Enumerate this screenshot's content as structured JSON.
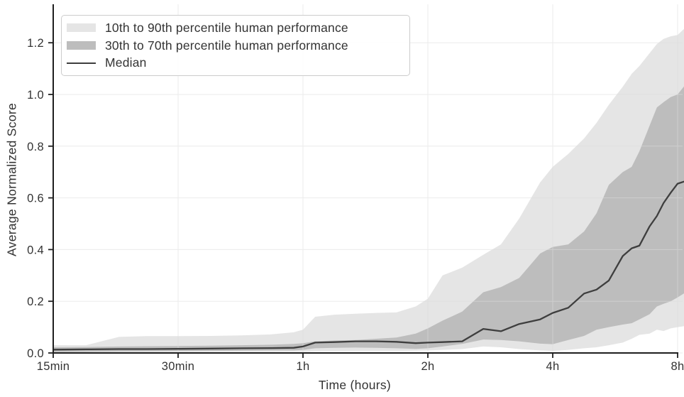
{
  "axes": {
    "x_title": "Time (hours)",
    "y_title": "Average Normalized Score"
  },
  "legend": {
    "items": [
      {
        "label": "10th to 90th percentile human performance",
        "type": "band",
        "color": "#e5e5e5"
      },
      {
        "label": "30th to 70th percentile human performance",
        "type": "band",
        "color": "#bdbdbd"
      },
      {
        "label": "Median",
        "type": "line",
        "color": "#3e3e3e"
      }
    ]
  },
  "colors": {
    "band_outer": "#e5e5e5",
    "band_inner": "#bdbdbd",
    "median_line": "#3e3e3e",
    "grid": "#dcdcdc",
    "spine": "#1f1f1f",
    "text": "#333333"
  },
  "chart_data": {
    "type": "area",
    "title": "",
    "xlabel": "Time (hours)",
    "ylabel": "Average Normalized Score",
    "x_scale": "log2",
    "grid": true,
    "legend_position": "upper left",
    "xlim_hours": [
      0.25,
      8.37
    ],
    "ylim": [
      0,
      1.345
    ],
    "x_ticks": [
      {
        "hours": 0.25,
        "label": "15min"
      },
      {
        "hours": 0.5,
        "label": "30min"
      },
      {
        "hours": 1,
        "label": "1h"
      },
      {
        "hours": 2,
        "label": "2h"
      },
      {
        "hours": 4,
        "label": "4h"
      },
      {
        "hours": 8,
        "label": "8h"
      }
    ],
    "y_ticks": [
      "0.0",
      "0.2",
      "0.4",
      "0.6",
      "0.8",
      "1.0",
      "1.2"
    ],
    "x_hours": [
      0.25,
      0.3,
      0.36,
      0.42,
      0.5,
      0.6,
      0.71,
      0.84,
      0.95,
      1.0,
      1.07,
      1.19,
      1.34,
      1.5,
      1.68,
      1.87,
      2.0,
      2.17,
      2.42,
      2.72,
      3.0,
      3.32,
      3.73,
      4.0,
      4.36,
      4.76,
      5.1,
      5.46,
      5.9,
      6.2,
      6.47,
      6.85,
      7.13,
      7.4,
      7.7,
      8.0,
      8.37
    ],
    "percentiles": {
      "p10": [
        0.002,
        0.002,
        0.003,
        0.003,
        0.003,
        0.004,
        0.004,
        0.004,
        0.005,
        0.005,
        0.006,
        0.007,
        0.008,
        0.008,
        0.008,
        0.009,
        0.01,
        0.012,
        0.015,
        0.025,
        0.022,
        0.015,
        0.01,
        0.008,
        0.012,
        0.018,
        0.022,
        0.03,
        0.04,
        0.055,
        0.07,
        0.075,
        0.09,
        0.085,
        0.095,
        0.1,
        0.105
      ],
      "p30": [
        0.004,
        0.005,
        0.006,
        0.007,
        0.008,
        0.008,
        0.009,
        0.01,
        0.01,
        0.012,
        0.018,
        0.02,
        0.021,
        0.02,
        0.018,
        0.016,
        0.018,
        0.025,
        0.035,
        0.052,
        0.05,
        0.045,
        0.036,
        0.034,
        0.05,
        0.066,
        0.09,
        0.1,
        0.11,
        0.115,
        0.13,
        0.15,
        0.18,
        0.19,
        0.2,
        0.215,
        0.235
      ],
      "p70": [
        0.022,
        0.023,
        0.025,
        0.026,
        0.027,
        0.028,
        0.03,
        0.032,
        0.035,
        0.038,
        0.045,
        0.048,
        0.05,
        0.055,
        0.06,
        0.075,
        0.095,
        0.125,
        0.16,
        0.235,
        0.255,
        0.29,
        0.385,
        0.41,
        0.42,
        0.47,
        0.54,
        0.65,
        0.7,
        0.72,
        0.78,
        0.88,
        0.95,
        0.97,
        0.99,
        1.0,
        1.04
      ],
      "p90": [
        0.03,
        0.03,
        0.062,
        0.065,
        0.065,
        0.066,
        0.068,
        0.072,
        0.08,
        0.09,
        0.14,
        0.148,
        0.152,
        0.155,
        0.157,
        0.18,
        0.21,
        0.3,
        0.33,
        0.38,
        0.42,
        0.52,
        0.66,
        0.72,
        0.77,
        0.83,
        0.89,
        0.96,
        1.03,
        1.08,
        1.11,
        1.16,
        1.195,
        1.215,
        1.225,
        1.23,
        1.26
      ]
    },
    "bands": [
      {
        "name": "10th to 90th percentile human performance",
        "lower": "p10",
        "upper": "p90",
        "color": "#e5e5e5"
      },
      {
        "name": "30th to 70th percentile human performance",
        "lower": "p30",
        "upper": "p70",
        "color": "#bdbdbd"
      }
    ],
    "line": {
      "name": "Median",
      "color": "#3e3e3e",
      "values": [
        0.013,
        0.014,
        0.015,
        0.015,
        0.016,
        0.017,
        0.018,
        0.019,
        0.02,
        0.025,
        0.04,
        0.042,
        0.045,
        0.045,
        0.043,
        0.038,
        0.04,
        0.042,
        0.045,
        0.093,
        0.084,
        0.112,
        0.13,
        0.155,
        0.175,
        0.23,
        0.245,
        0.28,
        0.375,
        0.405,
        0.415,
        0.49,
        0.53,
        0.58,
        0.62,
        0.655,
        0.665
      ]
    }
  }
}
